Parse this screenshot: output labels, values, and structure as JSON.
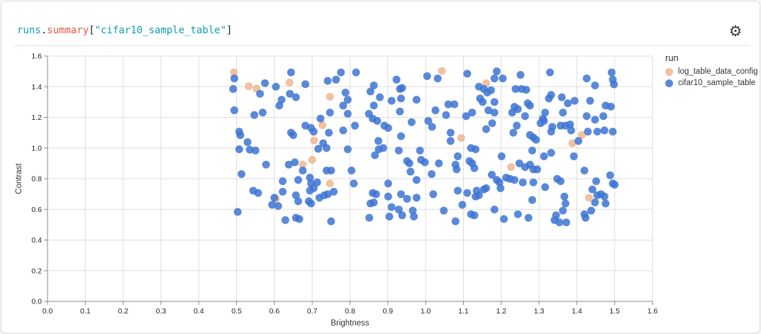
{
  "header": {
    "title_parts": [
      {
        "text": "runs",
        "color": "#0f9fb4"
      },
      {
        "text": ".",
        "color": "#222222"
      },
      {
        "text": "summary",
        "color": "#e25744"
      },
      {
        "text": "[",
        "color": "#222222"
      },
      {
        "text": "\"cifar10_sample_table\"",
        "color": "#0f9fb4"
      },
      {
        "text": "]",
        "color": "#222222"
      }
    ],
    "gear_icon": "⚙"
  },
  "chart_data": {
    "type": "scatter",
    "xlabel": "Brightness",
    "ylabel": "Contrast",
    "xlim": [
      0,
      1.6
    ],
    "ylim": [
      0,
      1.6
    ],
    "x_tick_step": 0.1,
    "y_tick_step": 0.2,
    "grid": true,
    "point_radius": 5.5,
    "point_opacity": 0.85,
    "legend_title": "run",
    "legend_position": "right",
    "series": [
      {
        "name": "log_table_data_config",
        "color": "#EFB691",
        "points": [
          [
            0.493,
            1.493
          ],
          [
            0.532,
            1.403
          ],
          [
            0.553,
            1.388
          ],
          [
            0.64,
            1.427
          ],
          [
            0.747,
            1.334
          ],
          [
            0.727,
            1.149
          ],
          [
            0.705,
            1.049
          ],
          [
            1.043,
            1.503
          ],
          [
            1.16,
            1.423
          ],
          [
            1.094,
            1.066
          ],
          [
            0.7,
            0.923
          ],
          [
            0.675,
            0.892
          ],
          [
            0.747,
            0.769
          ],
          [
            0.604,
            0.668
          ],
          [
            1.226,
            0.876
          ],
          [
            1.432,
            0.676
          ],
          [
            1.413,
            1.085
          ],
          [
            1.388,
            1.031
          ]
        ]
      },
      {
        "name": "cifar10_sample_table",
        "color": "#3D74D2",
        "points": [
          [
            0.494,
            1.454
          ],
          [
            0.491,
            1.385
          ],
          [
            0.562,
            1.354
          ],
          [
            0.575,
            1.423
          ],
          [
            0.604,
            1.4
          ],
          [
            0.644,
            1.493
          ],
          [
            0.682,
            1.416
          ],
          [
            0.641,
            1.354
          ],
          [
            0.657,
            1.331
          ],
          [
            0.619,
            1.315
          ],
          [
            0.613,
            1.277
          ],
          [
            0.741,
            1.438
          ],
          [
            0.763,
            1.446
          ],
          [
            0.776,
            1.493
          ],
          [
            0.816,
            1.493
          ],
          [
            0.788,
            1.362
          ],
          [
            0.794,
            1.315
          ],
          [
            0.782,
            1.277
          ],
          [
            0.794,
            1.223
          ],
          [
            0.747,
            1.231
          ],
          [
            0.494,
            1.246
          ],
          [
            0.547,
            1.215
          ],
          [
            0.569,
            1.231
          ],
          [
            0.722,
            1.192
          ],
          [
            0.507,
            1.107
          ],
          [
            0.51,
            1.084
          ],
          [
            0.644,
            1.1
          ],
          [
            0.65,
            1.084
          ],
          [
            0.682,
            1.146
          ],
          [
            0.697,
            1.131
          ],
          [
            0.704,
            1.107
          ],
          [
            0.744,
            1.1
          ],
          [
            0.782,
            1.115
          ],
          [
            0.813,
            1.146
          ],
          [
            0.529,
            1.038
          ],
          [
            0.729,
            1.031
          ],
          [
            0.863,
            1.408
          ],
          [
            0.854,
            1.369
          ],
          [
            0.923,
            1.446
          ],
          [
            0.932,
            1.385
          ],
          [
            0.938,
            1.392
          ],
          [
            0.879,
            1.331
          ],
          [
            0.91,
            1.308
          ],
          [
            0.935,
            1.323
          ],
          [
            0.976,
            1.315
          ],
          [
            0.863,
            1.277
          ],
          [
            1.004,
            1.469
          ],
          [
            1.032,
            1.454
          ],
          [
            1.11,
            1.485
          ],
          [
            1.141,
            1.4
          ],
          [
            1.154,
            1.385
          ],
          [
            1.163,
            1.362
          ],
          [
            1.173,
            1.377
          ],
          [
            1.144,
            1.323
          ],
          [
            1.151,
            1.3
          ],
          [
            0.932,
            1.238
          ],
          [
            0.85,
            1.223
          ],
          [
            0.86,
            1.192
          ],
          [
            0.872,
            1.177
          ],
          [
            1.026,
            1.246
          ],
          [
            1.06,
            1.285
          ],
          [
            1.076,
            1.285
          ],
          [
            1.054,
            1.215
          ],
          [
            1.107,
            1.208
          ],
          [
            1.123,
            1.231
          ],
          [
            0.891,
            1.146
          ],
          [
            0.901,
            1.131
          ],
          [
            0.963,
            1.169
          ],
          [
            1.007,
            1.177
          ],
          [
            1.017,
            1.138
          ],
          [
            1.066,
            1.1
          ],
          [
            0.935,
            1.077
          ],
          [
            0.875,
            1.046
          ],
          [
            1.066,
            1.046
          ],
          [
            1.166,
            1.246
          ],
          [
            1.176,
            1.162
          ],
          [
            1.16,
            1.123
          ],
          [
            1.188,
            1.5
          ],
          [
            1.182,
            1.454
          ],
          [
            1.204,
            1.454
          ],
          [
            1.251,
            1.477
          ],
          [
            1.329,
            1.493
          ],
          [
            1.238,
            1.385
          ],
          [
            1.254,
            1.385
          ],
          [
            1.266,
            1.38
          ],
          [
            1.426,
            1.454
          ],
          [
            1.448,
            1.408
          ],
          [
            1.492,
            1.493
          ],
          [
            1.495,
            1.446
          ],
          [
            1.498,
            1.415
          ],
          [
            1.182,
            1.3
          ],
          [
            1.182,
            1.231
          ],
          [
            1.332,
            1.346
          ],
          [
            1.326,
            1.323
          ],
          [
            1.36,
            1.331
          ],
          [
            1.376,
            1.292
          ],
          [
            1.394,
            1.308
          ],
          [
            1.235,
            1.269
          ],
          [
            1.244,
            1.254
          ],
          [
            1.27,
            1.292
          ],
          [
            1.276,
            1.277
          ],
          [
            1.229,
            1.231
          ],
          [
            1.263,
            1.208
          ],
          [
            1.435,
            1.308
          ],
          [
            1.476,
            1.277
          ],
          [
            1.49,
            1.27
          ],
          [
            1.316,
            1.231
          ],
          [
            1.31,
            1.192
          ],
          [
            1.313,
            1.177
          ],
          [
            1.304,
            1.162
          ],
          [
            1.363,
            1.231
          ],
          [
            1.357,
            1.146
          ],
          [
            1.37,
            1.146
          ],
          [
            1.426,
            1.208
          ],
          [
            1.448,
            1.185
          ],
          [
            1.47,
            1.208
          ],
          [
            1.241,
            1.146
          ],
          [
            1.335,
            1.138
          ],
          [
            1.382,
            1.154
          ],
          [
            1.385,
            1.115
          ],
          [
            1.232,
            1.1
          ],
          [
            1.276,
            1.085
          ],
          [
            1.285,
            1.069
          ],
          [
            1.292,
            1.054
          ],
          [
            1.332,
            1.107
          ],
          [
            1.429,
            1.107
          ],
          [
            1.454,
            1.107
          ],
          [
            1.473,
            1.115
          ],
          [
            1.495,
            1.107
          ],
          [
            1.404,
            1.046
          ],
          [
            0.507,
            0.992
          ],
          [
            0.535,
            0.989
          ],
          [
            0.55,
            0.984
          ],
          [
            0.716,
            0.995
          ],
          [
            0.738,
            1.0
          ],
          [
            0.794,
            0.992
          ],
          [
            0.578,
            0.892
          ],
          [
            0.513,
            0.83
          ],
          [
            0.638,
            0.892
          ],
          [
            0.654,
            0.907
          ],
          [
            0.675,
            0.853
          ],
          [
            0.738,
            0.853
          ],
          [
            0.75,
            0.853
          ],
          [
            0.804,
            0.853
          ],
          [
            0.622,
            0.784
          ],
          [
            0.663,
            0.792
          ],
          [
            0.694,
            0.807
          ],
          [
            0.697,
            0.769
          ],
          [
            0.704,
            0.738
          ],
          [
            0.694,
            0.722
          ],
          [
            0.713,
            0.776
          ],
          [
            0.81,
            0.769
          ],
          [
            0.544,
            0.722
          ],
          [
            0.557,
            0.707
          ],
          [
            0.6,
            0.676
          ],
          [
            0.622,
            0.715
          ],
          [
            0.657,
            0.692
          ],
          [
            0.663,
            0.653
          ],
          [
            0.691,
            0.653
          ],
          [
            0.697,
            0.638
          ],
          [
            0.719,
            0.676
          ],
          [
            0.732,
            0.692
          ],
          [
            0.741,
            0.699
          ],
          [
            0.757,
            0.715
          ],
          [
            0.594,
            0.63
          ],
          [
            0.61,
            0.622
          ],
          [
            0.503,
            0.584
          ],
          [
            0.629,
            0.53
          ],
          [
            0.657,
            0.545
          ],
          [
            0.666,
            0.537
          ],
          [
            0.75,
            0.522
          ],
          [
            0.876,
            0.992
          ],
          [
            0.888,
            1.0
          ],
          [
            0.866,
            0.953
          ],
          [
            0.929,
            0.984
          ],
          [
            0.985,
            0.984
          ],
          [
            0.951,
            0.915
          ],
          [
            0.957,
            0.9
          ],
          [
            0.988,
            0.923
          ],
          [
            0.998,
            0.907
          ],
          [
            1.035,
            0.9
          ],
          [
            1.085,
            0.946
          ],
          [
            1.079,
            0.892
          ],
          [
            1.082,
            0.861
          ],
          [
            1.12,
            1.0
          ],
          [
            1.132,
            0.992
          ],
          [
            1.116,
            0.915
          ],
          [
            1.123,
            0.9
          ],
          [
            1.129,
            0.869
          ],
          [
            0.96,
            0.846
          ],
          [
            1.016,
            0.83
          ],
          [
            0.976,
            0.792
          ],
          [
            0.901,
            0.769
          ],
          [
            0.86,
            0.707
          ],
          [
            0.869,
            0.699
          ],
          [
            0.901,
            0.684
          ],
          [
            0.935,
            0.699
          ],
          [
            0.951,
            0.669
          ],
          [
            0.976,
            0.676
          ],
          [
            1.02,
            0.699
          ],
          [
            0.854,
            0.638
          ],
          [
            0.863,
            0.645
          ],
          [
            0.91,
            0.615
          ],
          [
            0.929,
            0.599
          ],
          [
            0.938,
            0.561
          ],
          [
            0.904,
            0.553
          ],
          [
            0.966,
            0.592
          ],
          [
            0.969,
            0.553
          ],
          [
            0.851,
            0.545
          ],
          [
            1.048,
            0.592
          ],
          [
            1.085,
            0.722
          ],
          [
            1.11,
            0.707
          ],
          [
            1.135,
            0.722
          ],
          [
            1.132,
            0.684
          ],
          [
            1.141,
            0.692
          ],
          [
            1.154,
            0.73
          ],
          [
            1.16,
            0.738
          ],
          [
            1.097,
            0.63
          ],
          [
            1.12,
            0.568
          ],
          [
            1.129,
            0.561
          ],
          [
            1.079,
            0.522
          ],
          [
            1.175,
            0.826
          ],
          [
            1.201,
            0.946
          ],
          [
            1.282,
            0.984
          ],
          [
            1.313,
            0.946
          ],
          [
            1.332,
            0.969
          ],
          [
            1.392,
            0.946
          ],
          [
            1.248,
            0.9
          ],
          [
            1.263,
            0.876
          ],
          [
            1.276,
            0.892
          ],
          [
            1.285,
            0.861
          ],
          [
            1.295,
            0.861
          ],
          [
            1.42,
            0.853
          ],
          [
            1.188,
            0.792
          ],
          [
            1.195,
            0.776
          ],
          [
            1.213,
            0.807
          ],
          [
            1.223,
            0.799
          ],
          [
            1.235,
            0.792
          ],
          [
            1.257,
            0.776
          ],
          [
            1.285,
            0.776
          ],
          [
            1.198,
            0.738
          ],
          [
            1.316,
            0.745
          ],
          [
            1.348,
            0.799
          ],
          [
            1.357,
            0.784
          ],
          [
            1.488,
            0.822
          ],
          [
            1.495,
            0.769
          ],
          [
            1.5,
            0.761
          ],
          [
            1.451,
            0.784
          ],
          [
            1.441,
            0.73
          ],
          [
            1.454,
            0.692
          ],
          [
            1.464,
            0.699
          ],
          [
            1.473,
            0.684
          ],
          [
            1.476,
            0.638
          ],
          [
            1.448,
            0.645
          ],
          [
            1.367,
            0.684
          ],
          [
            1.37,
            0.638
          ],
          [
            1.282,
            0.661
          ],
          [
            1.182,
            0.599
          ],
          [
            1.207,
            0.537
          ],
          [
            1.244,
            0.568
          ],
          [
            1.272,
            0.545
          ],
          [
            1.345,
            0.561
          ],
          [
            1.341,
            0.53
          ],
          [
            1.354,
            0.515
          ],
          [
            1.372,
            0.515
          ],
          [
            1.363,
            0.592
          ],
          [
            1.42,
            0.568
          ],
          [
            1.423,
            0.545
          ],
          [
            1.438,
            0.592
          ]
        ]
      }
    ]
  },
  "style": {
    "grid_color": "#dddddd",
    "axis_color": "#888888",
    "tick_label_color": "#222222",
    "axis_title_color": "#333333"
  }
}
